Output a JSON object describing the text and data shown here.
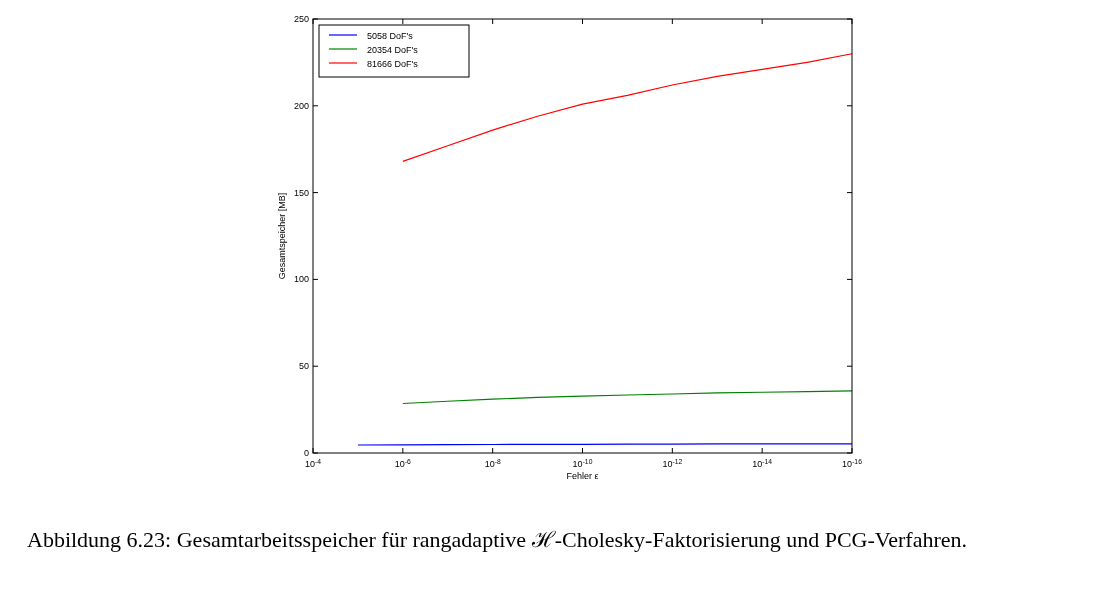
{
  "chart_data": {
    "type": "line",
    "xlabel": "Fehler ε",
    "ylabel": "Gesamtspeicher [MB]",
    "log": "x",
    "grid": false,
    "legend": "top left",
    "xlim": [
      0.0001,
      1e-16
    ],
    "ylim": [
      0,
      250
    ],
    "xticks": [
      {
        "value": 0.0001,
        "label": "10$^{-4}$"
      },
      {
        "value": 1e-06,
        "label": "10$^{-6}$"
      },
      {
        "value": 1e-08,
        "label": "10$^{-8}$"
      },
      {
        "value": 1e-10,
        "label": "10$^{-10}$"
      },
      {
        "value": 1e-12,
        "label": "10$^{-12}$"
      },
      {
        "value": 1e-14,
        "label": "10$^{-14}$"
      },
      {
        "value": 1e-16,
        "label": "10$^{-16}$"
      }
    ],
    "yticks": [
      0,
      50,
      100,
      150,
      200,
      250
    ],
    "series": [
      {
        "name": "5058 DoF's",
        "color": "#0000ff",
        "x": [
          1e-05,
          1e-06,
          1e-07,
          1e-08,
          1e-09,
          1e-10,
          1e-11,
          1e-12,
          1e-13,
          1e-14,
          1e-15,
          1e-16
        ],
        "values": [
          4.6,
          4.7,
          4.8,
          4.9,
          5.0,
          5.0,
          5.1,
          5.1,
          5.2,
          5.2,
          5.3,
          5.3
        ]
      },
      {
        "name": "20354 DoF's",
        "color": "#008000",
        "x": [
          1e-06,
          1e-07,
          1e-08,
          1e-09,
          1e-10,
          1e-11,
          1e-12,
          1e-13,
          1e-14,
          1e-15,
          1e-16
        ],
        "values": [
          28.5,
          29.8,
          31,
          32,
          32.8,
          33.4,
          34,
          34.6,
          35,
          35.4,
          35.8
        ]
      },
      {
        "name": "81666 DoF's",
        "color": "#ff0000",
        "x": [
          1e-06,
          1e-07,
          1e-08,
          1e-09,
          1e-10,
          1e-11,
          1e-12,
          1e-13,
          1e-14,
          1e-15,
          1e-16
        ],
        "values": [
          168,
          177,
          186,
          194,
          201,
          206,
          212,
          217,
          221,
          225,
          230
        ]
      }
    ],
    "annotations": [
      "Abbildung 6.23: Gesamtarbeitsspeicher für rangadaptive ℋ-Cholesky-Faktorisierung und PCG-Verfahren."
    ]
  }
}
